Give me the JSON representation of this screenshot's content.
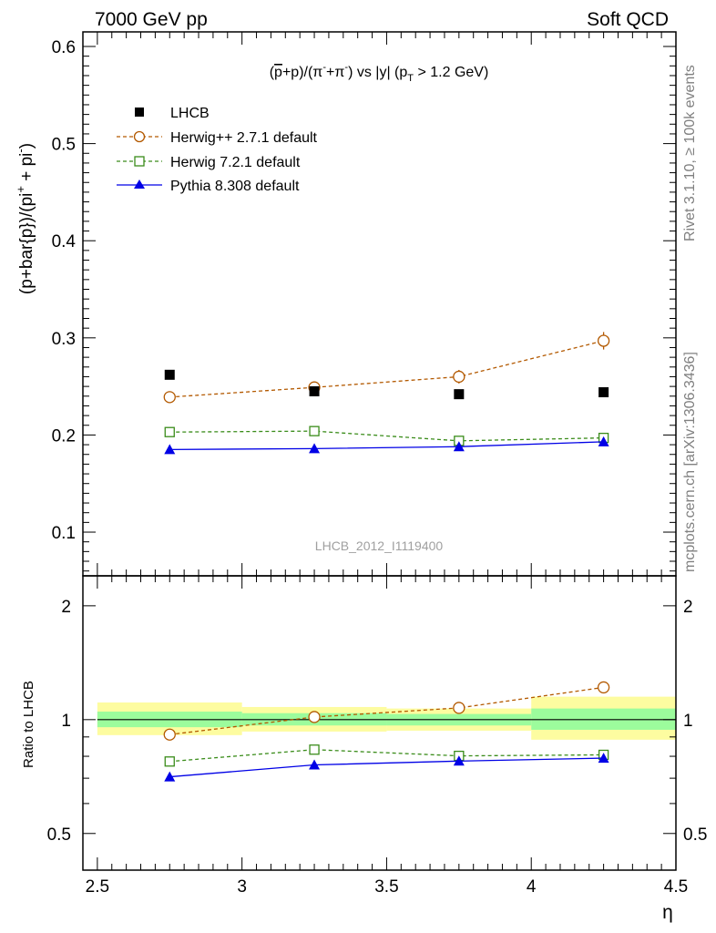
{
  "header": {
    "left": "7000 GeV pp",
    "right": "Soft QCD"
  },
  "side_labels": {
    "rivet": "Rivet 3.1.10, ≥ 100k events",
    "mcplots": "mcplots.cern.ch [arXiv:1306.3436]"
  },
  "colors": {
    "data": "#000000",
    "herwig_pp": "#b35900",
    "herwig7": "#3a8c1a",
    "pythia": "#0000e6",
    "band_inner": "#9cfc9c",
    "band_outer": "#fdfca0"
  },
  "chart_data": [
    {
      "type": "scatter",
      "title": "(p̄+p)/(π⁻+π⁻) vs |y| (p_T > 1.2 GeV)",
      "title_parts": {
        "a": "(",
        "bar_p": "p",
        "b": "+p)/(π",
        "sup1": "-",
        "c": "+π",
        "sup2": "-",
        "d": ") vs |y| (p",
        "sub": "T",
        "e": " > 1.2 GeV)"
      },
      "ylabel": "(p+bar{p})/(pi⁺ + pi⁻)",
      "ylabel_parts": {
        "a": "(p+bar{p})/(pi",
        "sup1": "+",
        "b": " + pi",
        "sup2": "-",
        "c": ")"
      },
      "analysis_label": "LHCB_2012_I1119400",
      "xlim": [
        2.45,
        4.5
      ],
      "ylim": [
        0.055,
        0.615
      ],
      "y_ticks": [
        0.1,
        0.2,
        0.3,
        0.4,
        0.5,
        0.6
      ],
      "y_tick_labels": [
        "0.1",
        "0.2",
        "0.3",
        "0.4",
        "0.5",
        "0.6"
      ],
      "legend_position": "top-left",
      "x": [
        2.75,
        3.25,
        3.75,
        4.25
      ],
      "x_edges": [
        2.5,
        3.0,
        3.5,
        4.0,
        4.5
      ],
      "series": [
        {
          "name": "LHCB",
          "key": "data",
          "values": [
            0.262,
            0.245,
            0.242,
            0.244
          ],
          "errors": [
            0.001,
            0.001,
            0.001,
            0.001
          ],
          "marker": "square-filled",
          "line": "none"
        },
        {
          "name": "Herwig++ 2.7.1 default",
          "key": "herwig_pp",
          "values": [
            0.239,
            0.249,
            0.26,
            0.297
          ],
          "errors": [
            0.006,
            0.006,
            0.007,
            0.009
          ],
          "marker": "circle-open",
          "line": "dashed"
        },
        {
          "name": "Herwig 7.2.1 default",
          "key": "herwig7",
          "values": [
            0.203,
            0.204,
            0.194,
            0.197
          ],
          "errors": [
            0.003,
            0.003,
            0.003,
            0.003
          ],
          "marker": "square-open",
          "line": "dashed"
        },
        {
          "name": "Pythia 8.308 default",
          "key": "pythia",
          "values": [
            0.185,
            0.186,
            0.188,
            0.193
          ],
          "errors": [
            0.002,
            0.002,
            0.002,
            0.002
          ],
          "marker": "triangle-filled",
          "line": "solid"
        }
      ]
    },
    {
      "type": "scatter",
      "ylabel": "Ratio to LHCB",
      "xlabel": "η",
      "ylim": [
        0.4,
        2.4
      ],
      "y_scale": "log",
      "y_ticks": [
        0.5,
        1,
        2
      ],
      "y_tick_labels": [
        "0.5",
        "1",
        "2"
      ],
      "xlim": [
        2.45,
        4.5
      ],
      "x_ticks": [
        2.5,
        3.0,
        3.5,
        4.0,
        4.5
      ],
      "x_tick_labels": [
        "2.5",
        "3",
        "3.5",
        "4",
        "4.5"
      ],
      "x": [
        2.75,
        3.25,
        3.75,
        4.25
      ],
      "x_edges": [
        2.5,
        3.0,
        3.5,
        4.0,
        4.5
      ],
      "band_inner": [
        [
          0.955,
          1.05
        ],
        [
          0.965,
          1.04
        ],
        [
          0.965,
          1.035
        ],
        [
          0.94,
          1.07
        ]
      ],
      "band_outer": [
        [
          0.91,
          1.11
        ],
        [
          0.93,
          1.08
        ],
        [
          0.935,
          1.07
        ],
        [
          0.885,
          1.15
        ]
      ],
      "series": [
        {
          "name": "Herwig++ 2.7.1 default",
          "key": "herwig_pp",
          "values": [
            0.913,
            1.016,
            1.074,
            1.217
          ],
          "errors": [
            0.02,
            0.02,
            0.025,
            0.035
          ],
          "marker": "circle-open",
          "line": "dashed"
        },
        {
          "name": "Herwig 7.2.1 default",
          "key": "herwig7",
          "values": [
            0.775,
            0.833,
            0.802,
            0.807
          ],
          "errors": [
            0.01,
            0.01,
            0.01,
            0.01
          ],
          "marker": "square-open",
          "line": "dashed"
        },
        {
          "name": "Pythia 8.308 default",
          "key": "pythia",
          "values": [
            0.706,
            0.759,
            0.777,
            0.791
          ],
          "errors": [
            0.008,
            0.008,
            0.008,
            0.008
          ],
          "marker": "triangle-filled",
          "line": "solid"
        }
      ]
    }
  ]
}
